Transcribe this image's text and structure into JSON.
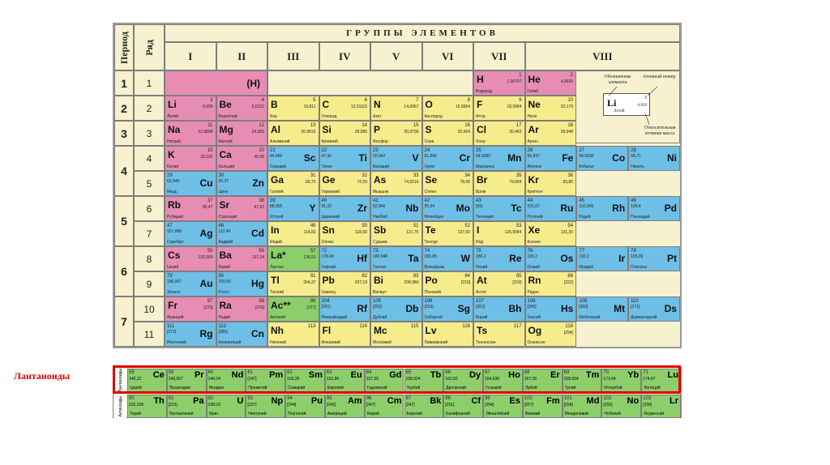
{
  "headers": {
    "period": "Период",
    "row": "Ряд",
    "groups_title": "ГРУППЫ ЭЛЕМЕНТОВ",
    "groups": [
      "I",
      "II",
      "III",
      "IV",
      "V",
      "VI",
      "VII",
      "VIII"
    ]
  },
  "periods": [
    "1",
    "2",
    "3",
    "4",
    "5",
    "6",
    "7"
  ],
  "rows": [
    "1",
    "2",
    "3",
    "4",
    "5",
    "6",
    "7",
    "8",
    "9",
    "10",
    "11"
  ],
  "legend": {
    "symbol_note": "Обозначение элемента",
    "number_note": "Атомный номер",
    "mass_note": "Относительная атомная масса",
    "sym": "Li",
    "num": "3",
    "mass": "6,939",
    "name": "Литий"
  },
  "hydrogen_placeholder": "(H)",
  "elements": [
    {
      "r": 0,
      "c": "H",
      "sym": "H",
      "num": "1",
      "mass": "1,00797",
      "name": "Водород",
      "t": "s"
    },
    {
      "r": 0,
      "c": "He",
      "sym": "He",
      "num": "2",
      "mass": "4,0026",
      "name": "Гелий",
      "t": "s"
    },
    {
      "r": 1,
      "c": 0,
      "sym": "Li",
      "num": "3",
      "mass": "6,939",
      "name": "Литий",
      "t": "s"
    },
    {
      "r": 1,
      "c": 1,
      "sym": "Be",
      "num": "4",
      "mass": "9,0122",
      "name": "Бериллий",
      "t": "s"
    },
    {
      "r": 1,
      "c": 2,
      "sym": "B",
      "num": "5",
      "mass": "10,811",
      "name": "Бор",
      "t": "p"
    },
    {
      "r": 1,
      "c": 3,
      "sym": "C",
      "num": "6",
      "mass": "12,01115",
      "name": "Углерод",
      "t": "p"
    },
    {
      "r": 1,
      "c": 4,
      "sym": "N",
      "num": "7",
      "mass": "14,0067",
      "name": "Азот",
      "t": "p"
    },
    {
      "r": 1,
      "c": 5,
      "sym": "O",
      "num": "8",
      "mass": "15,9994",
      "name": "Кислород",
      "t": "p"
    },
    {
      "r": 1,
      "c": 6,
      "sym": "F",
      "num": "9",
      "mass": "18,9984",
      "name": "Фтор",
      "t": "p"
    },
    {
      "r": 1,
      "c": 7,
      "sym": "Ne",
      "num": "10",
      "mass": "20,179",
      "name": "Неон",
      "t": "p"
    },
    {
      "r": 2,
      "c": 0,
      "sym": "Na",
      "num": "11",
      "mass": "22,9898",
      "name": "Натрий",
      "t": "s"
    },
    {
      "r": 2,
      "c": 1,
      "sym": "Mg",
      "num": "12",
      "mass": "24,305",
      "name": "Магний",
      "t": "s"
    },
    {
      "r": 2,
      "c": 2,
      "sym": "Al",
      "num": "13",
      "mass": "26,9815",
      "name": "Алюминий",
      "t": "p"
    },
    {
      "r": 2,
      "c": 3,
      "sym": "Si",
      "num": "14",
      "mass": "28,086",
      "name": "Кремний",
      "t": "p"
    },
    {
      "r": 2,
      "c": 4,
      "sym": "P",
      "num": "15",
      "mass": "30,9738",
      "name": "Фосфор",
      "t": "p"
    },
    {
      "r": 2,
      "c": 5,
      "sym": "S",
      "num": "16",
      "mass": "32,064",
      "name": "Сера",
      "t": "p"
    },
    {
      "r": 2,
      "c": 6,
      "sym": "Cl",
      "num": "17",
      "mass": "35,453",
      "name": "Хлор",
      "t": "p"
    },
    {
      "r": 2,
      "c": 7,
      "sym": "Ar",
      "num": "18",
      "mass": "39,948",
      "name": "Аргон",
      "t": "p"
    },
    {
      "r": 3,
      "c": 0,
      "sym": "K",
      "num": "19",
      "mass": "39,102",
      "name": "Калий",
      "t": "s"
    },
    {
      "r": 3,
      "c": 1,
      "sym": "Ca",
      "num": "20",
      "mass": "40,08",
      "name": "Кальций",
      "t": "s"
    },
    {
      "r": 3,
      "c": 2,
      "sym": "Sc",
      "num": "21",
      "mass": "44,956",
      "name": "Скандий",
      "t": "d"
    },
    {
      "r": 3,
      "c": 3,
      "sym": "Ti",
      "num": "22",
      "mass": "47,90",
      "name": "Титан",
      "t": "d"
    },
    {
      "r": 3,
      "c": 4,
      "sym": "V",
      "num": "23",
      "mass": "50,942",
      "name": "Ванадий",
      "t": "d"
    },
    {
      "r": 3,
      "c": 5,
      "sym": "Cr",
      "num": "24",
      "mass": "51,996",
      "name": "Хром",
      "t": "d"
    },
    {
      "r": 3,
      "c": 6,
      "sym": "Mn",
      "num": "25",
      "mass": "54,9380",
      "name": "Марганец",
      "t": "d"
    },
    {
      "r": 3,
      "c": "8a",
      "sym": "Fe",
      "num": "26",
      "mass": "55,847",
      "name": "Железо",
      "t": "d"
    },
    {
      "r": 3,
      "c": "8b",
      "sym": "Co",
      "num": "27",
      "mass": "58,9330",
      "name": "Кобальт",
      "t": "d"
    },
    {
      "r": 3,
      "c": "8c",
      "sym": "Ni",
      "num": "28",
      "mass": "58,71",
      "name": "Никель",
      "t": "d"
    },
    {
      "r": 4,
      "c": 0,
      "sym": "Cu",
      "num": "29",
      "mass": "63,546",
      "name": "Медь",
      "t": "d"
    },
    {
      "r": 4,
      "c": 1,
      "sym": "Zn",
      "num": "30",
      "mass": "65,37",
      "name": "Цинк",
      "t": "d"
    },
    {
      "r": 4,
      "c": 2,
      "sym": "Ga",
      "num": "31",
      "mass": "69,72",
      "name": "Галлий",
      "t": "p"
    },
    {
      "r": 4,
      "c": 3,
      "sym": "Ge",
      "num": "32",
      "mass": "72,59",
      "name": "Германий",
      "t": "p"
    },
    {
      "r": 4,
      "c": 4,
      "sym": "As",
      "num": "33",
      "mass": "74,9216",
      "name": "Мышьяк",
      "t": "p"
    },
    {
      "r": 4,
      "c": 5,
      "sym": "Se",
      "num": "34",
      "mass": "78,96",
      "name": "Селен",
      "t": "p"
    },
    {
      "r": 4,
      "c": 6,
      "sym": "Br",
      "num": "35",
      "mass": "79,904",
      "name": "Бром",
      "t": "p"
    },
    {
      "r": 4,
      "c": 7,
      "sym": "Kr",
      "num": "36",
      "mass": "83,80",
      "name": "Криптон",
      "t": "p"
    },
    {
      "r": 5,
      "c": 0,
      "sym": "Rb",
      "num": "37",
      "mass": "85,47",
      "name": "Рубидий",
      "t": "s"
    },
    {
      "r": 5,
      "c": 1,
      "sym": "Sr",
      "num": "38",
      "mass": "87,62",
      "name": "Стронций",
      "t": "s"
    },
    {
      "r": 5,
      "c": 2,
      "sym": "Y",
      "num": "39",
      "mass": "88,905",
      "name": "Иттрий",
      "t": "d"
    },
    {
      "r": 5,
      "c": 3,
      "sym": "Zr",
      "num": "40",
      "mass": "91,22",
      "name": "Цирконий",
      "t": "d"
    },
    {
      "r": 5,
      "c": 4,
      "sym": "Nb",
      "num": "41",
      "mass": "92,906",
      "name": "Ниобий",
      "t": "d"
    },
    {
      "r": 5,
      "c": 5,
      "sym": "Mo",
      "num": "42",
      "mass": "95,94",
      "name": "Молибден",
      "t": "d"
    },
    {
      "r": 5,
      "c": 6,
      "sym": "Tc",
      "num": "43",
      "mass": "[99]",
      "name": "Технеций",
      "t": "d"
    },
    {
      "r": 5,
      "c": "8a",
      "sym": "Ru",
      "num": "44",
      "mass": "101,07",
      "name": "Рутений",
      "t": "d"
    },
    {
      "r": 5,
      "c": "8b",
      "sym": "Rh",
      "num": "45",
      "mass": "102,905",
      "name": "Родий",
      "t": "d"
    },
    {
      "r": 5,
      "c": "8c",
      "sym": "Pd",
      "num": "46",
      "mass": "106,4",
      "name": "Палладий",
      "t": "d"
    },
    {
      "r": 6,
      "c": 0,
      "sym": "Ag",
      "num": "47",
      "mass": "107,868",
      "name": "Серебро",
      "t": "d"
    },
    {
      "r": 6,
      "c": 1,
      "sym": "Cd",
      "num": "48",
      "mass": "112,40",
      "name": "Кадмий",
      "t": "d"
    },
    {
      "r": 6,
      "c": 2,
      "sym": "In",
      "num": "49",
      "mass": "114,82",
      "name": "Индий",
      "t": "p"
    },
    {
      "r": 6,
      "c": 3,
      "sym": "Sn",
      "num": "50",
      "mass": "118,69",
      "name": "Олово",
      "t": "p"
    },
    {
      "r": 6,
      "c": 4,
      "sym": "Sb",
      "num": "51",
      "mass": "121,75",
      "name": "Сурьма",
      "t": "p"
    },
    {
      "r": 6,
      "c": 5,
      "sym": "Te",
      "num": "52",
      "mass": "127,60",
      "name": "Теллур",
      "t": "p"
    },
    {
      "r": 6,
      "c": 6,
      "sym": "I",
      "num": "53",
      "mass": "126,9044",
      "name": "Иод",
      "t": "p"
    },
    {
      "r": 6,
      "c": 7,
      "sym": "Xe",
      "num": "54",
      "mass": "131,30",
      "name": "Ксенон",
      "t": "p"
    },
    {
      "r": 7,
      "c": 0,
      "sym": "Cs",
      "num": "55",
      "mass": "132,905",
      "name": "Цезий",
      "t": "s"
    },
    {
      "r": 7,
      "c": 1,
      "sym": "Ba",
      "num": "56",
      "mass": "137,34",
      "name": "Барий",
      "t": "s"
    },
    {
      "r": 7,
      "c": 2,
      "sym": "La*",
      "num": "57",
      "mass": "138,91",
      "name": "Лантан",
      "t": "f"
    },
    {
      "r": 7,
      "c": 3,
      "sym": "Hf",
      "num": "72",
      "mass": "178,49",
      "name": "Гафний",
      "t": "d"
    },
    {
      "r": 7,
      "c": 4,
      "sym": "Ta",
      "num": "73",
      "mass": "180,948",
      "name": "Тантал",
      "t": "d"
    },
    {
      "r": 7,
      "c": 5,
      "sym": "W",
      "num": "74",
      "mass": "183,85",
      "name": "Вольфрам",
      "t": "d"
    },
    {
      "r": 7,
      "c": 6,
      "sym": "Re",
      "num": "75",
      "mass": "186,2",
      "name": "Рений",
      "t": "d"
    },
    {
      "r": 7,
      "c": "8a",
      "sym": "Os",
      "num": "76",
      "mass": "190,2",
      "name": "Осмий",
      "t": "d"
    },
    {
      "r": 7,
      "c": "8b",
      "sym": "Ir",
      "num": "77",
      "mass": "192,2",
      "name": "Иридий",
      "t": "d"
    },
    {
      "r": 7,
      "c": "8c",
      "sym": "Pt",
      "num": "78",
      "mass": "195,09",
      "name": "Платина",
      "t": "d"
    },
    {
      "r": 8,
      "c": 0,
      "sym": "Au",
      "num": "79",
      "mass": "196,967",
      "name": "Золото",
      "t": "d"
    },
    {
      "r": 8,
      "c": 1,
      "sym": "Hg",
      "num": "80",
      "mass": "200,59",
      "name": "Ртуть",
      "t": "d"
    },
    {
      "r": 8,
      "c": 2,
      "sym": "Tl",
      "num": "81",
      "mass": "204,37",
      "name": "Таллий",
      "t": "p"
    },
    {
      "r": 8,
      "c": 3,
      "sym": "Pb",
      "num": "82",
      "mass": "207,19",
      "name": "Свинец",
      "t": "p"
    },
    {
      "r": 8,
      "c": 4,
      "sym": "Bi",
      "num": "83",
      "mass": "208,980",
      "name": "Висмут",
      "t": "p"
    },
    {
      "r": 8,
      "c": 5,
      "sym": "Po",
      "num": "84",
      "mass": "[210]",
      "name": "Полоний",
      "t": "p"
    },
    {
      "r": 8,
      "c": 6,
      "sym": "At",
      "num": "85",
      "mass": "[210]",
      "name": "Астат",
      "t": "p"
    },
    {
      "r": 8,
      "c": 7,
      "sym": "Rn",
      "num": "86",
      "mass": "[222]",
      "name": "Радон",
      "t": "p"
    },
    {
      "r": 9,
      "c": 0,
      "sym": "Fr",
      "num": "87",
      "mass": "[223]",
      "name": "Франций",
      "t": "s"
    },
    {
      "r": 9,
      "c": 1,
      "sym": "Ra",
      "num": "88",
      "mass": "[226]",
      "name": "Радий",
      "t": "s"
    },
    {
      "r": 9,
      "c": 2,
      "sym": "Ac**",
      "num": "89",
      "mass": "[227]",
      "name": "Актиний",
      "t": "f"
    },
    {
      "r": 9,
      "c": 3,
      "sym": "Rf",
      "num": "104",
      "mass": "[261]",
      "name": "Резерфордий",
      "t": "d"
    },
    {
      "r": 9,
      "c": 4,
      "sym": "Db",
      "num": "105",
      "mass": "[262]",
      "name": "Дубний",
      "t": "d"
    },
    {
      "r": 9,
      "c": 5,
      "sym": "Sg",
      "num": "106",
      "mass": "[263]",
      "name": "Сиборгий",
      "t": "d"
    },
    {
      "r": 9,
      "c": 6,
      "sym": "Bh",
      "num": "107",
      "mass": "[262]",
      "name": "Борий",
      "t": "d"
    },
    {
      "r": 9,
      "c": "8a",
      "sym": "Hs",
      "num": "108",
      "mass": "[265]",
      "name": "Хассий",
      "t": "d"
    },
    {
      "r": 9,
      "c": "8b",
      "sym": "Mt",
      "num": "109",
      "mass": "[266]",
      "name": "Мейтнерий",
      "t": "d"
    },
    {
      "r": 9,
      "c": "8c",
      "sym": "Ds",
      "num": "110",
      "mass": "[271]",
      "name": "Дармштадтий",
      "t": "d"
    },
    {
      "r": 10,
      "c": 0,
      "sym": "Rg",
      "num": "111",
      "mass": "[272]",
      "name": "Рентгений",
      "t": "d"
    },
    {
      "r": 10,
      "c": 1,
      "sym": "Cn",
      "num": "112",
      "mass": "[285]",
      "name": "Коперниций",
      "t": "d"
    },
    {
      "r": 10,
      "c": 2,
      "sym": "Nh",
      "num": "113",
      "mass": "",
      "name": "Нихоний",
      "t": "p"
    },
    {
      "r": 10,
      "c": 3,
      "sym": "Fl",
      "num": "114",
      "mass": "",
      "name": "Флеровий",
      "t": "p"
    },
    {
      "r": 10,
      "c": 4,
      "sym": "Mc",
      "num": "115",
      "mass": "",
      "name": "Московий",
      "t": "p"
    },
    {
      "r": 10,
      "c": 5,
      "sym": "Lv",
      "num": "116",
      "mass": "",
      "name": "Ливерморий",
      "t": "p"
    },
    {
      "r": 10,
      "c": 6,
      "sym": "Ts",
      "num": "117",
      "mass": "",
      "name": "Теннессин",
      "t": "p"
    },
    {
      "r": 10,
      "c": 7,
      "sym": "Og",
      "num": "118",
      "mass": "[294]",
      "name": "Оганесон",
      "t": "p"
    }
  ],
  "lanthanides_label": "Лантаноиды",
  "lanthanides_row_label": "Лантаноиды",
  "actinides_row_label": "Актиноиды",
  "lanthanides": [
    {
      "sym": "Ce",
      "num": "58",
      "mass": "140,12",
      "name": "Церий"
    },
    {
      "sym": "Pr",
      "num": "59",
      "mass": "140,907",
      "name": "Празеодим"
    },
    {
      "sym": "Nd",
      "num": "60",
      "mass": "144,24",
      "name": "Неодим"
    },
    {
      "sym": "Pm",
      "num": "61",
      "mass": "[147]",
      "name": "Прометий"
    },
    {
      "sym": "Sm",
      "num": "62",
      "mass": "150,35",
      "name": "Самарий"
    },
    {
      "sym": "Eu",
      "num": "63",
      "mass": "151,96",
      "name": "Европий"
    },
    {
      "sym": "Gd",
      "num": "64",
      "mass": "157,25",
      "name": "Гадолиний"
    },
    {
      "sym": "Tb",
      "num": "65",
      "mass": "158,924",
      "name": "Тербий"
    },
    {
      "sym": "Dy",
      "num": "66",
      "mass": "162,50",
      "name": "Диспрозий"
    },
    {
      "sym": "Ho",
      "num": "67",
      "mass": "164,930",
      "name": "Гольмий"
    },
    {
      "sym": "Er",
      "num": "68",
      "mass": "167,26",
      "name": "Эрбий"
    },
    {
      "sym": "Tm",
      "num": "69",
      "mass": "168,934",
      "name": "Тулий"
    },
    {
      "sym": "Yb",
      "num": "70",
      "mass": "173,04",
      "name": "Иттербий"
    },
    {
      "sym": "Lu",
      "num": "71",
      "mass": "174,97",
      "name": "Лютеций"
    }
  ],
  "actinides": [
    {
      "sym": "Th",
      "num": "90",
      "mass": "232,038",
      "name": "Торий"
    },
    {
      "sym": "Pa",
      "num": "91",
      "mass": "[231]",
      "name": "Протактиний"
    },
    {
      "sym": "U",
      "num": "92",
      "mass": "238,03",
      "name": "Уран"
    },
    {
      "sym": "Np",
      "num": "93",
      "mass": "[237]",
      "name": "Нептуний"
    },
    {
      "sym": "Pu",
      "num": "94",
      "mass": "[244]",
      "name": "Плутоний"
    },
    {
      "sym": "Am",
      "num": "95",
      "mass": "[243]",
      "name": "Америций"
    },
    {
      "sym": "Cm",
      "num": "96",
      "mass": "[247]",
      "name": "Кюрий"
    },
    {
      "sym": "Bk",
      "num": "97",
      "mass": "[247]",
      "name": "Берклий"
    },
    {
      "sym": "Cf",
      "num": "98",
      "mass": "[251]",
      "name": "Калифорний"
    },
    {
      "sym": "Es",
      "num": "99",
      "mass": "[254]",
      "name": "Эйнштейний"
    },
    {
      "sym": "Fm",
      "num": "100",
      "mass": "[257]",
      "name": "Фермий"
    },
    {
      "sym": "Md",
      "num": "101",
      "mass": "[258]",
      "name": "Менделевий"
    },
    {
      "sym": "No",
      "num": "102",
      "mass": "[255]",
      "name": "Нобелий"
    },
    {
      "sym": "Lr",
      "num": "103",
      "mass": "[256]",
      "name": "Лоуренсий"
    }
  ],
  "colors": {
    "s": "#e78db3",
    "p": "#f7ec8b",
    "d": "#6dbfe6",
    "f": "#8ccf6a",
    "highlight": "#e00000"
  }
}
